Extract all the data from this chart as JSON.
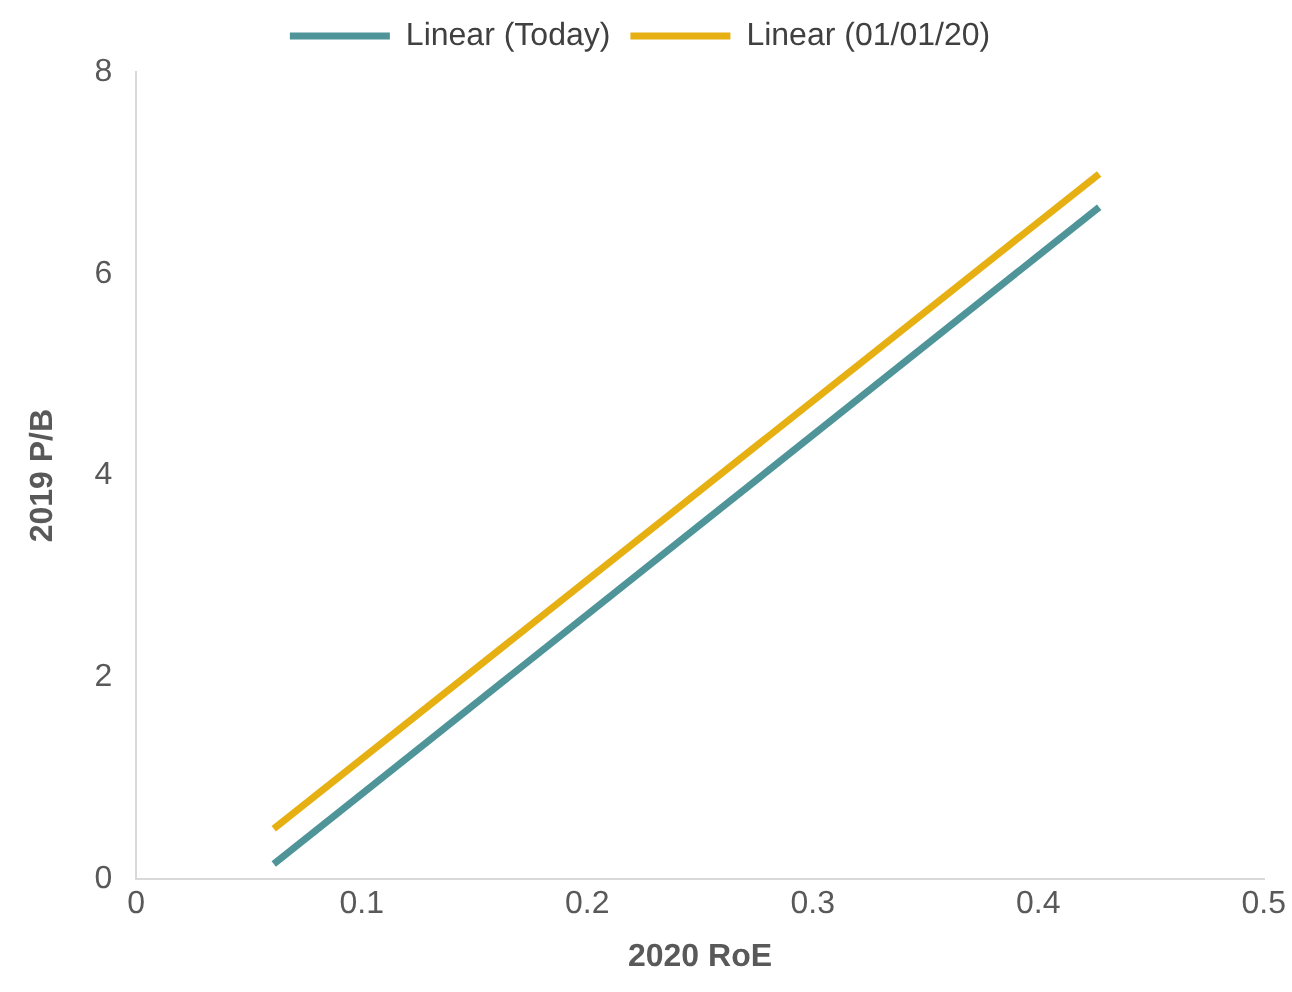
{
  "chart_data": {
    "type": "line",
    "xlabel": "2020 RoE",
    "ylabel": "2019 P/B",
    "x": [
      0.061,
      0.427
    ],
    "xlim": [
      0,
      0.5
    ],
    "xticks": [
      0,
      0.1,
      0.2,
      0.3,
      0.4,
      0.5
    ],
    "ylim": [
      0,
      8
    ],
    "yticks": [
      0,
      2,
      4,
      6,
      8
    ],
    "grid": false,
    "legend": "top",
    "marker": "none",
    "line_style": "solid",
    "series": [
      {
        "name": "Linear (Today)",
        "color": "#4e9498",
        "values": [
          0.15,
          6.66
        ]
      },
      {
        "name": "Linear (01/01/20)",
        "color": "#e6b012",
        "values": [
          0.5,
          6.99
        ]
      }
    ]
  }
}
